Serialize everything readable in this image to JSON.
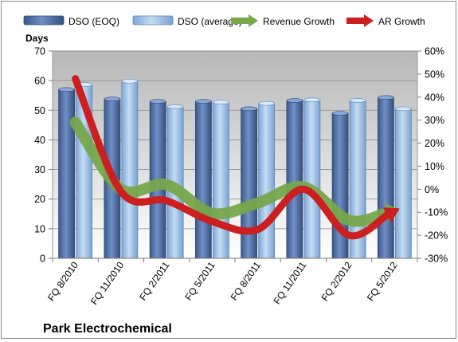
{
  "chart_data": {
    "type": "bar",
    "categories": [
      "FQ 8/2010",
      "FQ 11/2010",
      "FQ 2/2011",
      "FQ 5/2011",
      "FQ 8/2011",
      "FQ 11/2011",
      "FQ 2/2012",
      "FQ 5/2012"
    ],
    "ylabel": "Days",
    "ylim": [
      0,
      70
    ],
    "yticks": [
      "0",
      "10",
      "20",
      "30",
      "40",
      "50",
      "60",
      "70"
    ],
    "y2lim": [
      -30,
      60
    ],
    "y2ticks": [
      "-30%",
      "-20%",
      "-10%",
      "0%",
      "10%",
      "20%",
      "30%",
      "40%",
      "50%",
      "60%"
    ],
    "bar_series": [
      {
        "name": "DSO (EOQ)",
        "color": "#4f6fa8",
        "values": [
          57,
          53.8,
          53,
          53,
          50.5,
          53.3,
          49,
          54.3
        ]
      },
      {
        "name": "DSO (average)",
        "color": "#9cc0e6",
        "values": [
          58.7,
          59.8,
          51.2,
          52.7,
          52.3,
          53.5,
          53.3,
          50.5
        ]
      }
    ],
    "line_series": [
      {
        "name": "Revenue Growth",
        "color": "#77a64b",
        "unit": "%",
        "values": [
          29,
          0,
          2,
          -10.5,
          -6,
          1,
          -13.5,
          -9.5
        ]
      },
      {
        "name": "AR Growth",
        "color": "#cc1f1f",
        "unit": "%",
        "values": [
          48,
          -1,
          -5,
          -14,
          -17.5,
          0,
          -20,
          -9.5
        ]
      }
    ],
    "company": "Park Electrochemical",
    "legend": "top",
    "grid": true
  }
}
